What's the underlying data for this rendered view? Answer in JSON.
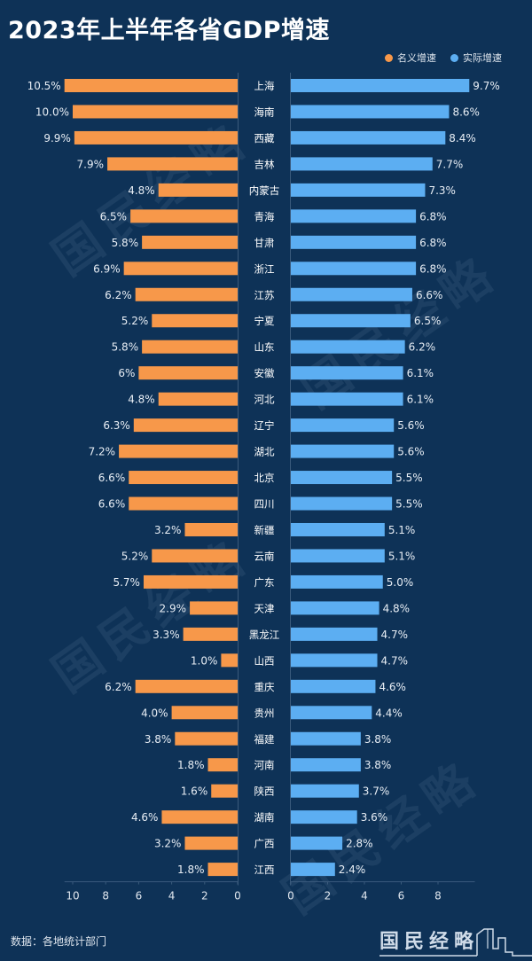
{
  "title": "2023年上半年各省GDP增速",
  "legend": [
    {
      "label": "名义增速",
      "color": "#f7984a"
    },
    {
      "label": "实际增速",
      "color": "#5caef2"
    }
  ],
  "source": "数据：各地统计部门",
  "logo": "国民经略",
  "watermark": "国民经略",
  "chart_data": {
    "type": "bar",
    "orientation": "horizontal-butterfly",
    "title": "2023年上半年各省GDP增速",
    "categories": [
      "上海",
      "海南",
      "西藏",
      "吉林",
      "内蒙古",
      "青海",
      "甘肃",
      "浙江",
      "江苏",
      "宁夏",
      "山东",
      "安徽",
      "河北",
      "辽宁",
      "湖北",
      "北京",
      "四川",
      "新疆",
      "云南",
      "广东",
      "天津",
      "黑龙江",
      "山西",
      "重庆",
      "贵州",
      "福建",
      "河南",
      "陕西",
      "湖南",
      "广西",
      "江西"
    ],
    "series": [
      {
        "name": "名义增速",
        "color": "#f7984a",
        "values": [
          10.5,
          10.0,
          9.9,
          7.9,
          4.8,
          6.5,
          5.8,
          6.9,
          6.2,
          5.2,
          5.8,
          6,
          4.8,
          6.3,
          7.2,
          6.6,
          6.6,
          3.2,
          5.2,
          5.7,
          2.9,
          3.3,
          1.0,
          6.2,
          4.0,
          3.8,
          1.8,
          1.6,
          4.6,
          3.2,
          1.8
        ],
        "labels": [
          "10.5%",
          "10.0%",
          "9.9%",
          "7.9%",
          "4.8%",
          "6.5%",
          "5.8%",
          "6.9%",
          "6.2%",
          "5.2%",
          "5.8%",
          "6%",
          "4.8%",
          "6.3%",
          "7.2%",
          "6.6%",
          "6.6%",
          "3.2%",
          "5.2%",
          "5.7%",
          "2.9%",
          "3.3%",
          "1.0%",
          "6.2%",
          "4.0%",
          "3.8%",
          "1.8%",
          "1.6%",
          "4.6%",
          "3.2%",
          "1.8%"
        ],
        "axis_ticks": [
          "10",
          "8",
          "6",
          "4",
          "2",
          "0"
        ],
        "xlim": [
          0,
          10.5
        ]
      },
      {
        "name": "实际增速",
        "color": "#5caef2",
        "values": [
          9.7,
          8.6,
          8.4,
          7.7,
          7.3,
          6.8,
          6.8,
          6.8,
          6.6,
          6.5,
          6.2,
          6.1,
          6.1,
          5.6,
          5.6,
          5.5,
          5.5,
          5.1,
          5.1,
          5.0,
          4.8,
          4.7,
          4.7,
          4.6,
          4.4,
          3.8,
          3.8,
          3.7,
          3.6,
          2.8,
          2.4
        ],
        "labels": [
          "9.7%",
          "8.6%",
          "8.4%",
          "7.7%",
          "7.3%",
          "6.8%",
          "6.8%",
          "6.8%",
          "6.6%",
          "6.5%",
          "6.2%",
          "6.1%",
          "6.1%",
          "5.6%",
          "5.6%",
          "5.5%",
          "5.5%",
          "5.1%",
          "5.1%",
          "5.0%",
          "4.8%",
          "4.7%",
          "4.7%",
          "4.6%",
          "4.4%",
          "3.8%",
          "3.8%",
          "3.7%",
          "3.6%",
          "2.8%",
          "2.4%"
        ],
        "axis_ticks": [
          "0",
          "2",
          "4",
          "6",
          "8"
        ],
        "xlim": [
          0,
          9.7
        ]
      }
    ],
    "legend_position": "top-right",
    "grid": false
  }
}
